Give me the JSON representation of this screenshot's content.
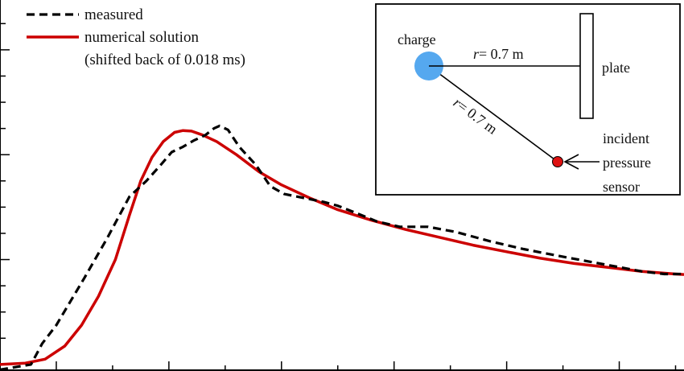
{
  "colors": {
    "measured": "#000000",
    "numerical": "#cc0000",
    "charge": "#55a8ef",
    "sensor": "#dd1111",
    "frame": "#000000"
  },
  "chart_data": {
    "type": "line",
    "title": "",
    "xlabel": "",
    "ylabel": "",
    "grid": false,
    "legend": "top-left",
    "series": [
      {
        "name": "measured",
        "style": "dashed",
        "color": "#000000",
        "points": [
          [
            -1.0,
            -0.2
          ],
          [
            -0.45,
            0.0
          ],
          [
            -0.25,
            0.8
          ],
          [
            0.0,
            1.5
          ],
          [
            0.5,
            3.3
          ],
          [
            0.9,
            4.8
          ],
          [
            1.3,
            6.4
          ],
          [
            1.6,
            7.0
          ],
          [
            1.85,
            7.6
          ],
          [
            2.05,
            8.1
          ],
          [
            2.25,
            8.3
          ],
          [
            2.45,
            8.55
          ],
          [
            2.65,
            8.75
          ],
          [
            2.8,
            9.0
          ],
          [
            2.9,
            9.1
          ],
          [
            3.05,
            8.95
          ],
          [
            3.25,
            8.3
          ],
          [
            3.55,
            7.6
          ],
          [
            3.8,
            6.8
          ],
          [
            4.05,
            6.5
          ],
          [
            4.4,
            6.35
          ],
          [
            4.75,
            6.2
          ],
          [
            5.0,
            6.05
          ],
          [
            5.3,
            5.8
          ],
          [
            5.7,
            5.45
          ],
          [
            6.1,
            5.25
          ],
          [
            6.6,
            5.25
          ],
          [
            7.1,
            5.05
          ],
          [
            7.7,
            4.7
          ],
          [
            8.3,
            4.4
          ],
          [
            8.9,
            4.15
          ],
          [
            9.4,
            3.95
          ],
          [
            9.9,
            3.75
          ],
          [
            10.4,
            3.55
          ],
          [
            10.8,
            3.45
          ],
          [
            11.1,
            3.45
          ],
          [
            11.15,
            3.5
          ]
        ]
      },
      {
        "name": "numerical solution",
        "style": "solid",
        "color": "#cc0000",
        "points": [
          [
            -1.0,
            0.0
          ],
          [
            -0.55,
            0.05
          ],
          [
            -0.2,
            0.2
          ],
          [
            0.15,
            0.7
          ],
          [
            0.45,
            1.5
          ],
          [
            0.75,
            2.6
          ],
          [
            1.05,
            4.0
          ],
          [
            1.3,
            5.7
          ],
          [
            1.5,
            7.0
          ],
          [
            1.7,
            7.9
          ],
          [
            1.9,
            8.5
          ],
          [
            2.1,
            8.85
          ],
          [
            2.25,
            8.92
          ],
          [
            2.4,
            8.9
          ],
          [
            2.6,
            8.75
          ],
          [
            2.85,
            8.5
          ],
          [
            3.2,
            8.0
          ],
          [
            3.6,
            7.35
          ],
          [
            4.0,
            6.85
          ],
          [
            4.5,
            6.35
          ],
          [
            5.0,
            5.9
          ],
          [
            5.6,
            5.5
          ],
          [
            6.2,
            5.15
          ],
          [
            6.8,
            4.85
          ],
          [
            7.4,
            4.55
          ],
          [
            8.0,
            4.3
          ],
          [
            8.6,
            4.05
          ],
          [
            9.2,
            3.85
          ],
          [
            9.8,
            3.7
          ],
          [
            10.4,
            3.55
          ],
          [
            11.0,
            3.45
          ],
          [
            11.15,
            3.43
          ]
        ]
      }
    ]
  },
  "legend": {
    "items": [
      {
        "label": "measured"
      },
      {
        "label": "numerical solution"
      }
    ],
    "note": "(shifted back of 0.018 ms)"
  },
  "inset": {
    "charge_label": "charge",
    "plate_label": "plate",
    "r_symbol": "r",
    "r_horizontal_value": "= 0.7 m",
    "r_diagonal_value": "= 0.7 m",
    "sensor_label_lines": [
      "incident",
      "pressure",
      "sensor"
    ]
  }
}
